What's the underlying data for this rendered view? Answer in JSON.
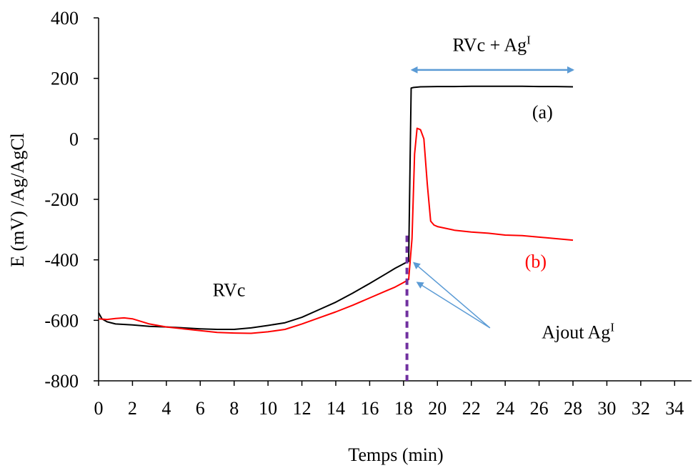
{
  "chart_data": {
    "type": "line",
    "xlabel": "Temps (min)",
    "ylabel": "E (mV) /Ag/AgCl",
    "xlim": [
      0,
      35
    ],
    "ylim": [
      -800,
      400
    ],
    "x_ticks": [
      0,
      2,
      4,
      6,
      8,
      10,
      12,
      14,
      16,
      18,
      20,
      22,
      24,
      26,
      28,
      30,
      32,
      34
    ],
    "y_ticks": [
      -800,
      -600,
      -400,
      -200,
      0,
      200,
      400
    ],
    "grid": false,
    "series": [
      {
        "name": "(a)",
        "color": "#000000",
        "x": [
          0,
          0.2,
          0.5,
          1,
          2,
          3,
          4,
          5,
          6,
          7,
          8,
          9,
          10,
          11,
          12,
          13,
          14,
          15,
          16,
          17,
          17.5,
          18,
          18.3,
          18.45,
          18.6,
          19,
          20,
          21,
          22,
          23,
          24,
          25,
          26,
          27,
          28
        ],
        "y": [
          -575,
          -595,
          -605,
          -612,
          -615,
          -620,
          -622,
          -625,
          -628,
          -630,
          -630,
          -625,
          -617,
          -608,
          -590,
          -565,
          -540,
          -510,
          -478,
          -445,
          -428,
          -413,
          -405,
          168,
          170,
          172,
          173,
          173,
          174,
          174,
          174,
          174,
          173,
          173,
          172
        ]
      },
      {
        "name": "(b)",
        "color": "#ff0000",
        "x": [
          0,
          0.5,
          1,
          1.5,
          2,
          3,
          4,
          5,
          6,
          7,
          8,
          9,
          10,
          11,
          12,
          13,
          14,
          15,
          16,
          17,
          17.5,
          18,
          18.3,
          18.5,
          18.65,
          18.8,
          19,
          19.2,
          19.4,
          19.6,
          19.8,
          20,
          21,
          22,
          23,
          24,
          25,
          26,
          27,
          28
        ],
        "y": [
          -595,
          -597,
          -594,
          -592,
          -595,
          -612,
          -622,
          -628,
          -634,
          -640,
          -642,
          -643,
          -638,
          -630,
          -612,
          -592,
          -572,
          -550,
          -526,
          -502,
          -490,
          -475,
          -465,
          -330,
          -50,
          35,
          30,
          0,
          -150,
          -272,
          -285,
          -290,
          -302,
          -308,
          -312,
          -318,
          -320,
          -325,
          -330,
          -335
        ]
      }
    ],
    "annotations": {
      "rvc_label": "RVc",
      "arrow_label": "RVc + Ag",
      "arrow_label_sup": "I",
      "arrow_from_x": 18.5,
      "arrow_to_x": 28,
      "arrow_y": 228,
      "label_a": "(a)",
      "label_b": "(b)",
      "ajout_label": "Ajout Ag",
      "ajout_sup": "I",
      "addition_time": 18.2,
      "addition_line_top": -320,
      "ajout_arrows": [
        {
          "to_x": 18.45,
          "to_y": -410
        },
        {
          "to_x": 18.65,
          "to_y": -475
        }
      ],
      "ajout_origin": {
        "x": 23.1,
        "y": -625
      }
    },
    "colors": {
      "series_a": "#000000",
      "series_b": "#ff0000",
      "label_b": "#ff0000",
      "arrows": "#5b9bd5",
      "addition_line": "#7030a0",
      "axis": "#000000"
    }
  }
}
